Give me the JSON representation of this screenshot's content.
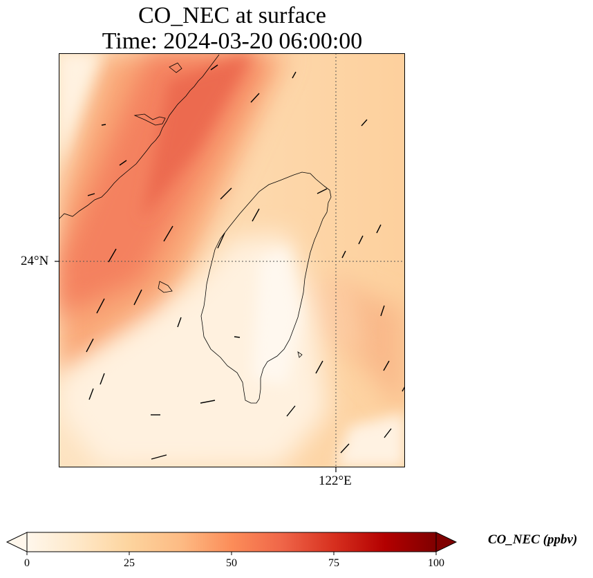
{
  "title": {
    "line1": "CO_NEC at surface",
    "line2": "Time: 2024-03-20 06:00:00"
  },
  "map": {
    "lat_label": "24°N",
    "lon_label": "122°E",
    "gridlines": "dotted"
  },
  "colorbar": {
    "label": "CO_NEC (ppbv)",
    "ticks": [
      "0",
      "25",
      "50",
      "75",
      "100"
    ],
    "range": [
      0,
      100
    ],
    "colormap": "OrRd",
    "extend": "both"
  },
  "colors": {
    "low": "#fff7ec",
    "mid": "#fdbb84",
    "high": "#ef6548",
    "max": "#7f0000"
  }
}
